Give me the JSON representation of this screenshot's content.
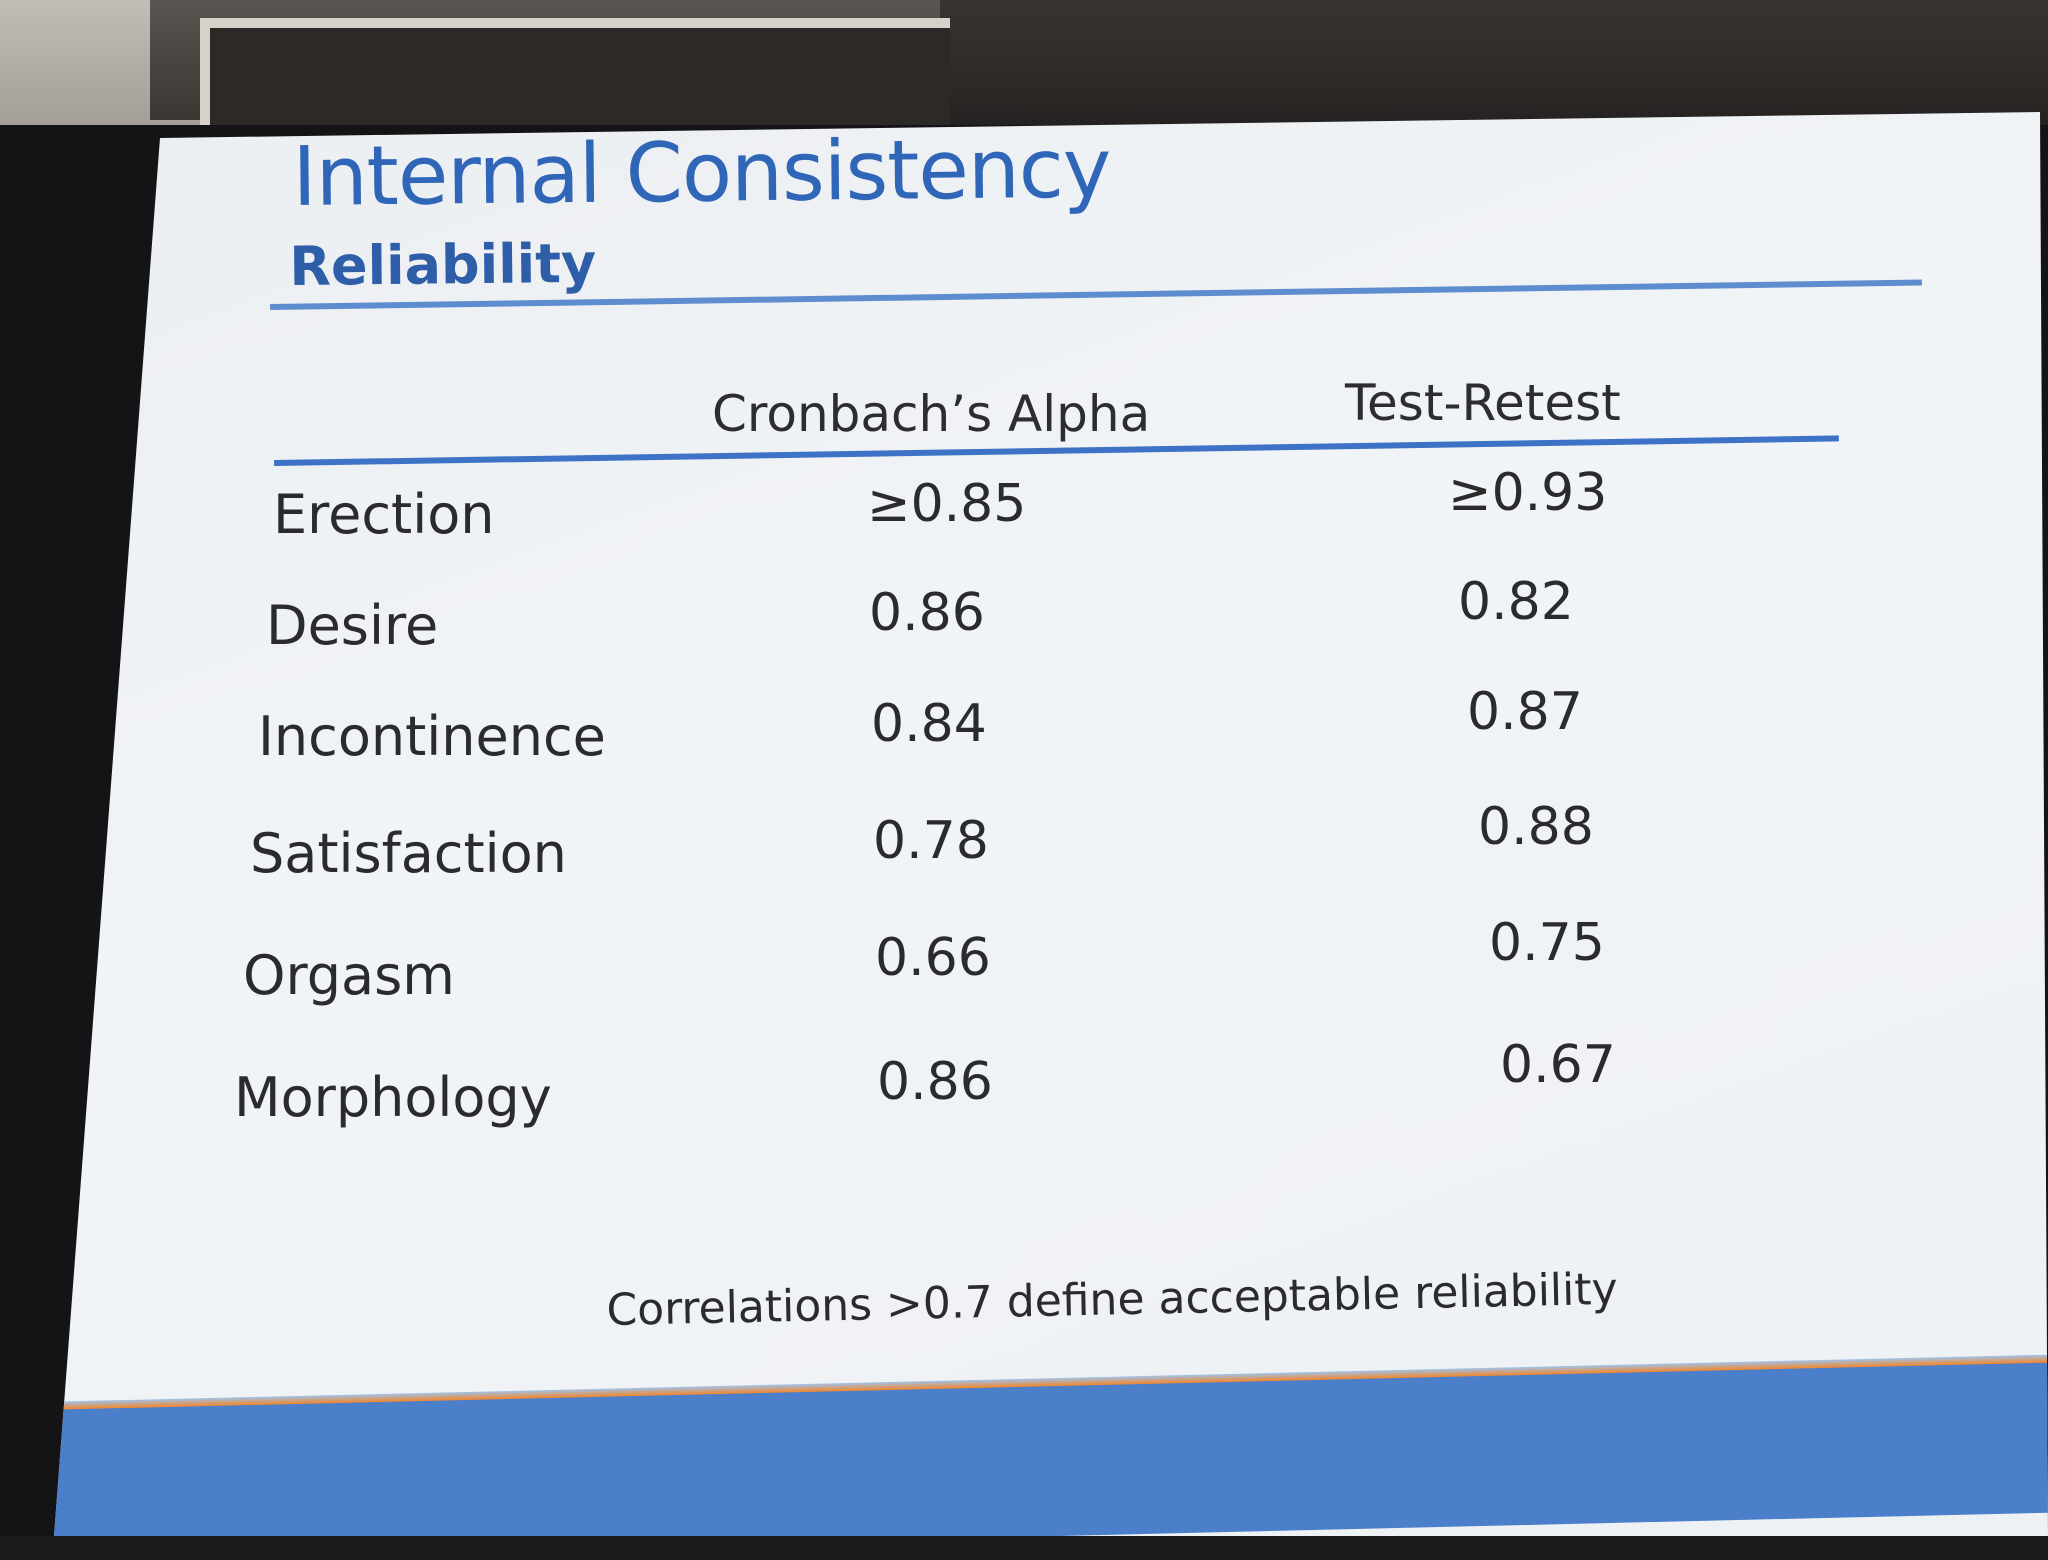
{
  "slide": {
    "title": "Internal Consistency",
    "subtitle": "Reliability",
    "table": {
      "columns": [
        "Cronbach’s Alpha",
        "Test-Retest"
      ],
      "rows": [
        {
          "label": "Erection",
          "alpha": "≥0.85",
          "retest": "≥0.93"
        },
        {
          "label": "Desire",
          "alpha": "0.86",
          "retest": "0.82"
        },
        {
          "label": "Incontinence",
          "alpha": "0.84",
          "retest": "0.87"
        },
        {
          "label": "Satisfaction",
          "alpha": "0.78",
          "retest": "0.88"
        },
        {
          "label": "Orgasm",
          "alpha": "0.66",
          "retest": "0.75"
        },
        {
          "label": "Morphology",
          "alpha": "0.86",
          "retest": "0.67"
        }
      ]
    },
    "footnote": "Correlations >0.7 define acceptable reliability",
    "colors": {
      "title": "#2f66b8",
      "rule": "#3d72c7",
      "accent_orange": "#e67a26",
      "band_blue": "#4b7fc9"
    }
  }
}
